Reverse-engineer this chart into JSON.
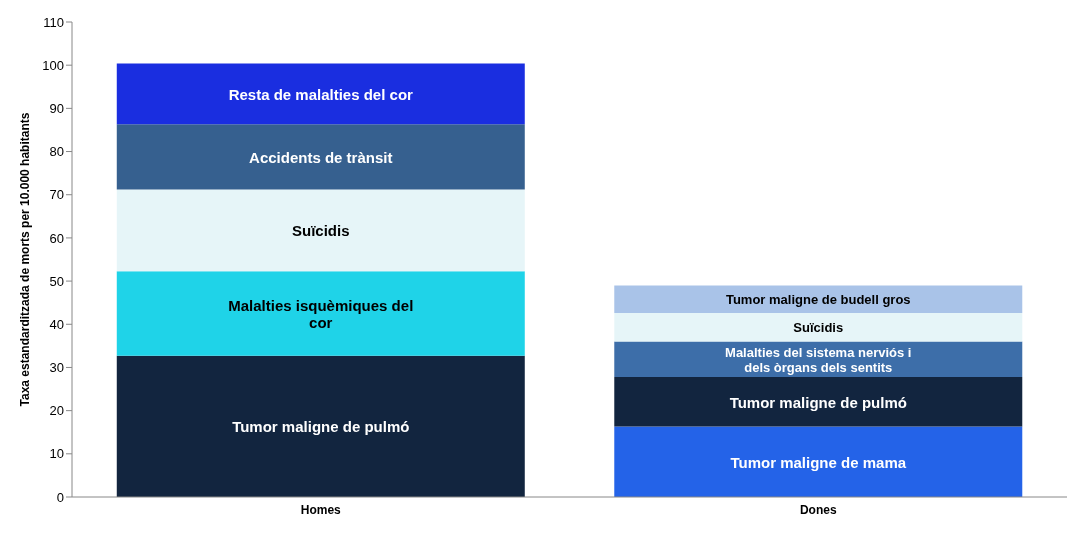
{
  "chart_data": {
    "type": "bar",
    "stacked": true,
    "ylabel": "Taxa estandarditzada de morts per 10.000 habitants",
    "categories": [
      "Homes",
      "Dones"
    ],
    "ylim": [
      0,
      110
    ],
    "yticks": [
      0,
      10,
      20,
      30,
      40,
      50,
      60,
      70,
      80,
      90,
      100,
      110
    ],
    "grid": false,
    "legend": false,
    "series": [
      {
        "name": "Tumor maligne de mama",
        "color": "#2463e8",
        "values": [
          null,
          16.3
        ]
      },
      {
        "name": "Tumor maligne de pulmó",
        "color": "#12253f",
        "values": [
          32.7,
          11.5
        ]
      },
      {
        "name": "Malalties isquèmiques del cor",
        "color": "#1fd3e8",
        "values": [
          19.6,
          null
        ]
      },
      {
        "name": "Malalties del sistema nerviós i dels òrgans dels sentits",
        "color": "#3d6ea9",
        "values": [
          null,
          8.2
        ]
      },
      {
        "name": "Suïcidis",
        "color": "#e6f5f8",
        "values": [
          18.9,
          6.6
        ]
      },
      {
        "name": "Accidents de trànsit",
        "color": "#36608f",
        "values": [
          15.1,
          null
        ]
      },
      {
        "name": "Tumor maligne de budell gros",
        "color": "#a9c3e8",
        "values": [
          null,
          6.4
        ]
      },
      {
        "name": "Resta de malalties del cor",
        "color": "#1a2ee0",
        "values": [
          14.1,
          null
        ]
      }
    ]
  }
}
